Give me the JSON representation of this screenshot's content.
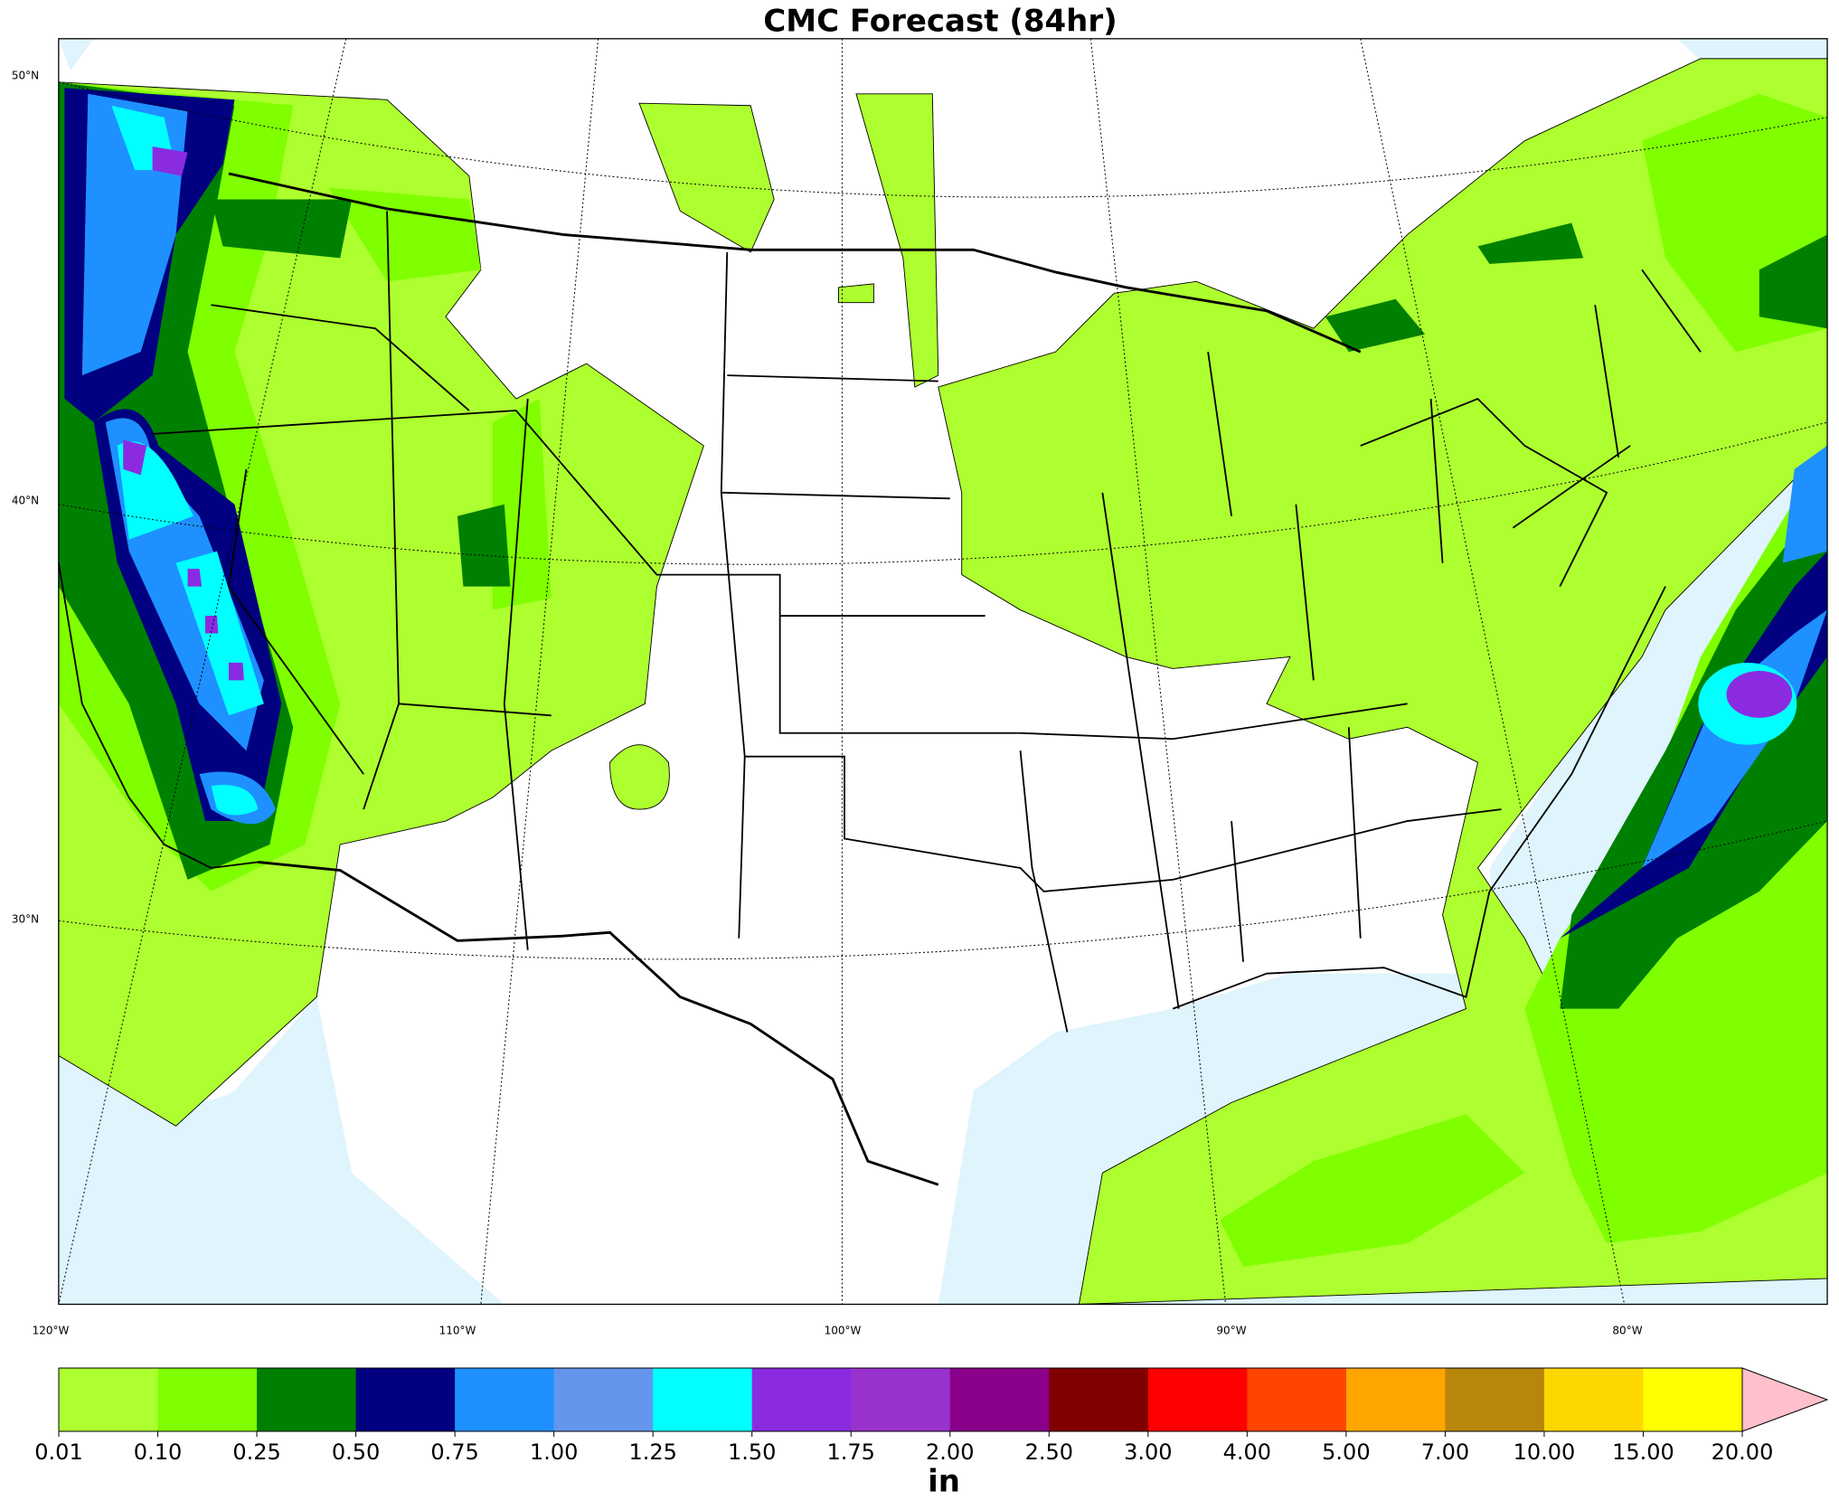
{
  "header": {
    "title": "CMC Forecast (84hr)"
  },
  "map": {
    "lat_labels": [
      "50°N",
      "40°N",
      "30°N"
    ],
    "lon_labels": [
      "120°W",
      "110°W",
      "100°W",
      "90°W",
      "80°W"
    ]
  },
  "colorbar": {
    "levels": [
      "0.01",
      "0.10",
      "0.25",
      "0.50",
      "0.75",
      "1.00",
      "1.25",
      "1.50",
      "1.75",
      "2.00",
      "2.50",
      "3.00",
      "4.00",
      "5.00",
      "7.00",
      "10.00",
      "15.00",
      "20.00"
    ],
    "colors": [
      "#adff2f",
      "#7fff00",
      "#008000",
      "#000080",
      "#1e90ff",
      "#6495ed",
      "#00ffff",
      "#8a2be2",
      "#9932cc",
      "#8b008b",
      "#800000",
      "#ff0000",
      "#ff4500",
      "#ffa500",
      "#b8860b",
      "#ffd700",
      "#ffff00"
    ],
    "extend_color": "#ffc0cb",
    "unit": "in"
  }
}
